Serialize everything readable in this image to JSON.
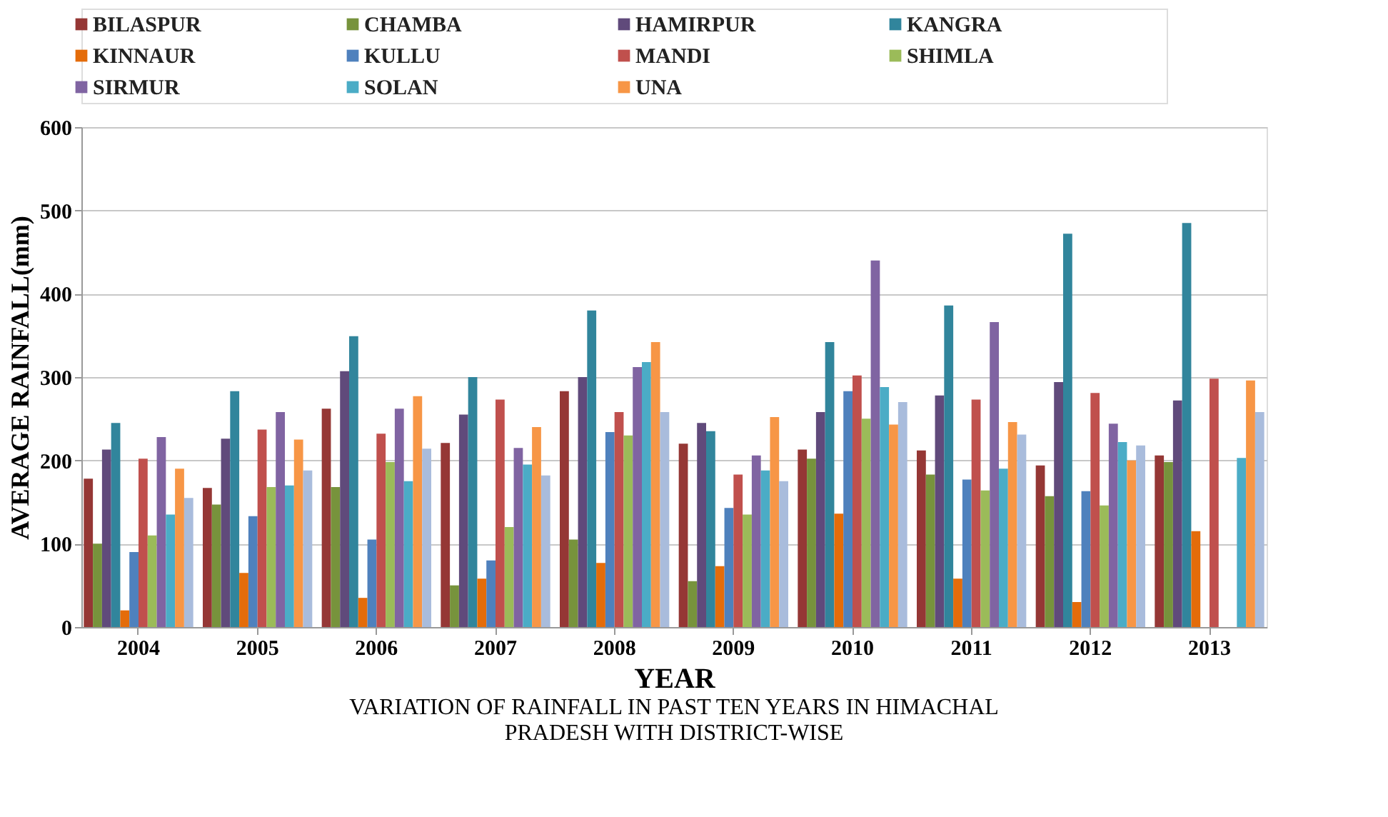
{
  "chart_data": {
    "type": "bar",
    "title": "VARIATION OF RAINFALL IN PAST TEN YEARS IN HIMACHAL PRADESH WITH DISTRICT-WISE",
    "xlabel": "YEAR",
    "ylabel": "AVERAGE RAINFALL(mm)",
    "categories": [
      "2004",
      "2005",
      "2006",
      "2007",
      "2008",
      "2009",
      "2010",
      "2011",
      "2012",
      "2013"
    ],
    "ylim": [
      0,
      600
    ],
    "yticks": [
      0,
      100,
      200,
      300,
      400,
      500,
      600
    ],
    "grid": "y",
    "legend": "top",
    "series": [
      {
        "name": "BILASPUR",
        "color": "#953735",
        "values": [
          178,
          167,
          262,
          221,
          283,
          220,
          213,
          212,
          194,
          206
        ]
      },
      {
        "name": "CHAMBA",
        "color": "#77933c",
        "values": [
          100,
          147,
          168,
          50,
          105,
          55,
          202,
          183,
          157,
          198
        ]
      },
      {
        "name": "HAMIRPUR",
        "color": "#604a7b",
        "values": [
          213,
          226,
          307,
          255,
          300,
          245,
          258,
          278,
          294,
          272
        ]
      },
      {
        "name": "KANGRA",
        "color": "#31859c",
        "values": [
          245,
          283,
          349,
          300,
          380,
          235,
          342,
          386,
          472,
          485
        ]
      },
      {
        "name": "KINNAUR",
        "color": "#e46c0a",
        "values": [
          20,
          65,
          35,
          58,
          77,
          73,
          136,
          58,
          30,
          115
        ]
      },
      {
        "name": "KULLU",
        "color": "#4f81bd",
        "values": [
          90,
          133,
          105,
          80,
          234,
          143,
          283,
          177,
          163,
          null
        ]
      },
      {
        "name": "MANDI",
        "color": "#c0504d",
        "values": [
          202,
          237,
          232,
          273,
          258,
          183,
          302,
          273,
          281,
          298
        ]
      },
      {
        "name": "SHIMLA",
        "color": "#9bbb59",
        "values": [
          110,
          168,
          198,
          120,
          230,
          135,
          250,
          164,
          146,
          null
        ]
      },
      {
        "name": "SIRMUR",
        "color": "#8064a2",
        "values": [
          228,
          258,
          262,
          215,
          312,
          206,
          440,
          366,
          244,
          null
        ]
      },
      {
        "name": "SOLAN",
        "color": "#4bacc6",
        "values": [
          135,
          170,
          175,
          195,
          318,
          188,
          288,
          190,
          222,
          203
        ]
      },
      {
        "name": "UNA",
        "color": "#f79646",
        "values": [
          190,
          225,
          277,
          240,
          342,
          252,
          243,
          246,
          200,
          296
        ]
      },
      {
        "color": "#a9bcdc",
        "values": [
          155,
          188,
          214,
          182,
          258,
          175,
          270,
          231,
          218,
          258
        ]
      }
    ]
  }
}
